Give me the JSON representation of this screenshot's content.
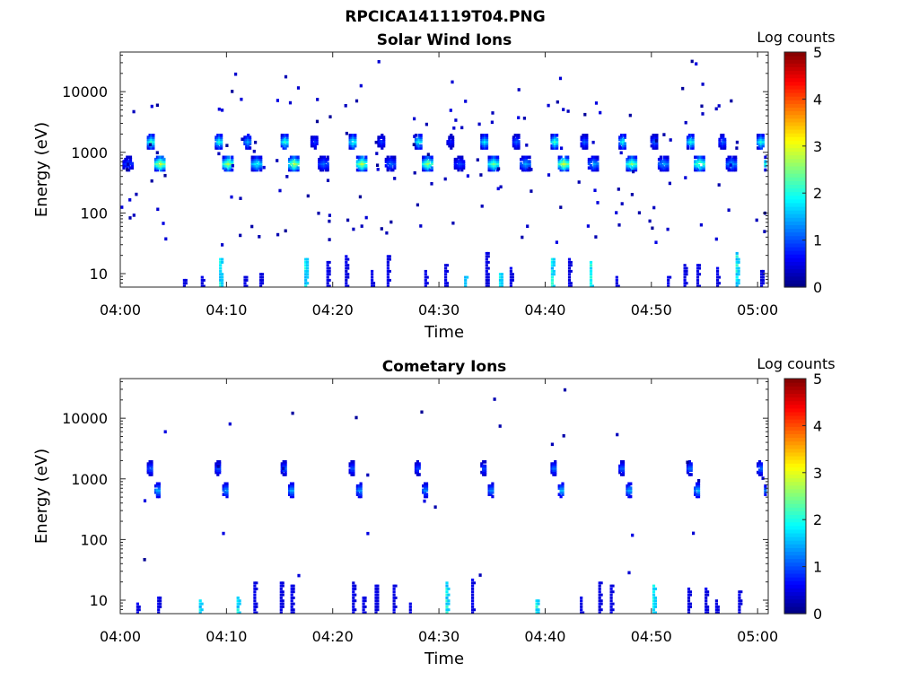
{
  "figure_title": "RPCICA141119T04.PNG",
  "chart_data": [
    {
      "type": "heatmap",
      "title": "Solar Wind Ions",
      "xlabel": "Time",
      "ylabel": "Energy (eV)",
      "y_scale": "log",
      "ylim": [
        6,
        45000
      ],
      "x_range_minutes": [
        0,
        61
      ],
      "x_ticks": [
        "04:00",
        "04:10",
        "04:20",
        "04:30",
        "04:40",
        "04:50",
        "05:00"
      ],
      "y_ticks": [
        "10",
        "100",
        "1000",
        "10000"
      ],
      "colorbar": {
        "label": "Log counts",
        "min": 0,
        "max": 5,
        "ticks": [
          "0",
          "1",
          "2",
          "3",
          "4",
          "5"
        ]
      },
      "sweep_minutes": [
        0.2,
        3.2,
        9.6,
        12.3,
        15.8,
        18.6,
        22.2,
        24.9,
        28.4,
        31.4,
        34.6,
        37.6,
        41.2,
        44.0,
        47.6,
        50.6,
        54.0,
        57.0,
        60.6
      ],
      "peak_log_counts": [
        1.0,
        3.0,
        2.8,
        2.0,
        2.9,
        1.2,
        2.9,
        1.2,
        2.7,
        1.0,
        2.5,
        1.5,
        3.0,
        1.5,
        2.6,
        1.5,
        2.7,
        1.5,
        2.8
      ],
      "beam_energy_ev": [
        650,
        1500
      ],
      "low_energy_band_ev": [
        6,
        25
      ]
    },
    {
      "type": "heatmap",
      "title": "Cometary Ions",
      "xlabel": "Time",
      "ylabel": "Energy (eV)",
      "y_scale": "log",
      "ylim": [
        6,
        45000
      ],
      "x_range_minutes": [
        0,
        61
      ],
      "x_ticks": [
        "04:00",
        "04:10",
        "04:20",
        "04:30",
        "04:40",
        "04:50",
        "05:00"
      ],
      "y_ticks": [
        "10",
        "100",
        "1000",
        "10000"
      ],
      "colorbar": {
        "label": "Log counts",
        "min": 0,
        "max": 5,
        "ticks": [
          "0",
          "1",
          "2",
          "3",
          "4",
          "5"
        ]
      },
      "sweep_minutes": [
        3.2,
        9.6,
        15.8,
        22.2,
        28.4,
        34.6,
        41.2,
        47.6,
        54.0,
        60.6
      ],
      "peak_log_counts": [
        1.6,
        1.5,
        1.6,
        1.5,
        1.4,
        1.4,
        1.7,
        1.6,
        1.7,
        1.7
      ],
      "beam_energy_ev": [
        650,
        1500
      ],
      "low_energy_band_ev": [
        6,
        25
      ]
    }
  ]
}
